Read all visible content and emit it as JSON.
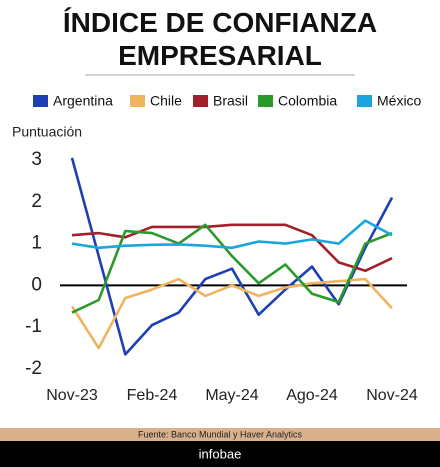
{
  "chart_data": {
    "type": "line",
    "title": "ÍNDICE DE CONFIANZA EMPRESARIAL",
    "y_label": "Puntuación",
    "source": "Fuente: Banco Mundial y Haver Analytics",
    "footer": "infobae",
    "categories": [
      "Nov-23",
      null,
      null,
      "Feb-24",
      null,
      null,
      "May-24",
      null,
      null,
      "Ago-24",
      null,
      null,
      "Nov-24"
    ],
    "series": [
      {
        "name": "Argentina",
        "color": "#1f3fb5",
        "values": [
          3.05,
          0.7,
          -1.65,
          -0.95,
          -0.65,
          0.15,
          0.4,
          -0.7,
          -0.1,
          0.45,
          -0.45,
          0.9,
          2.1
        ]
      },
      {
        "name": "Chile",
        "color": "#f0b460",
        "values": [
          -0.5,
          -1.5,
          -0.3,
          -0.1,
          0.15,
          -0.25,
          0.0,
          -0.25,
          -0.05,
          0.05,
          0.1,
          0.15,
          -0.55
        ]
      },
      {
        "name": "Brasil",
        "color": "#a3202a",
        "values": [
          1.2,
          1.25,
          1.15,
          1.4,
          1.4,
          1.4,
          1.45,
          1.45,
          1.45,
          1.2,
          0.55,
          0.35,
          0.65
        ]
      },
      {
        "name": "Colombia",
        "color": "#2a9a2a",
        "values": [
          -0.65,
          -0.35,
          1.3,
          1.25,
          1.0,
          1.45,
          0.7,
          0.05,
          0.5,
          -0.2,
          -0.4,
          1.0,
          1.25
        ]
      },
      {
        "name": "México",
        "color": "#1aa5dc",
        "values": [
          1.0,
          0.9,
          0.95,
          0.97,
          0.98,
          0.95,
          0.9,
          1.05,
          1.0,
          1.1,
          1.0,
          1.55,
          1.2
        ]
      }
    ],
    "ylim": [
      -2.2,
      3.2
    ],
    "yticks": [
      -2,
      -1,
      0,
      1,
      2,
      3
    ],
    "grid": false,
    "legend": "top"
  }
}
